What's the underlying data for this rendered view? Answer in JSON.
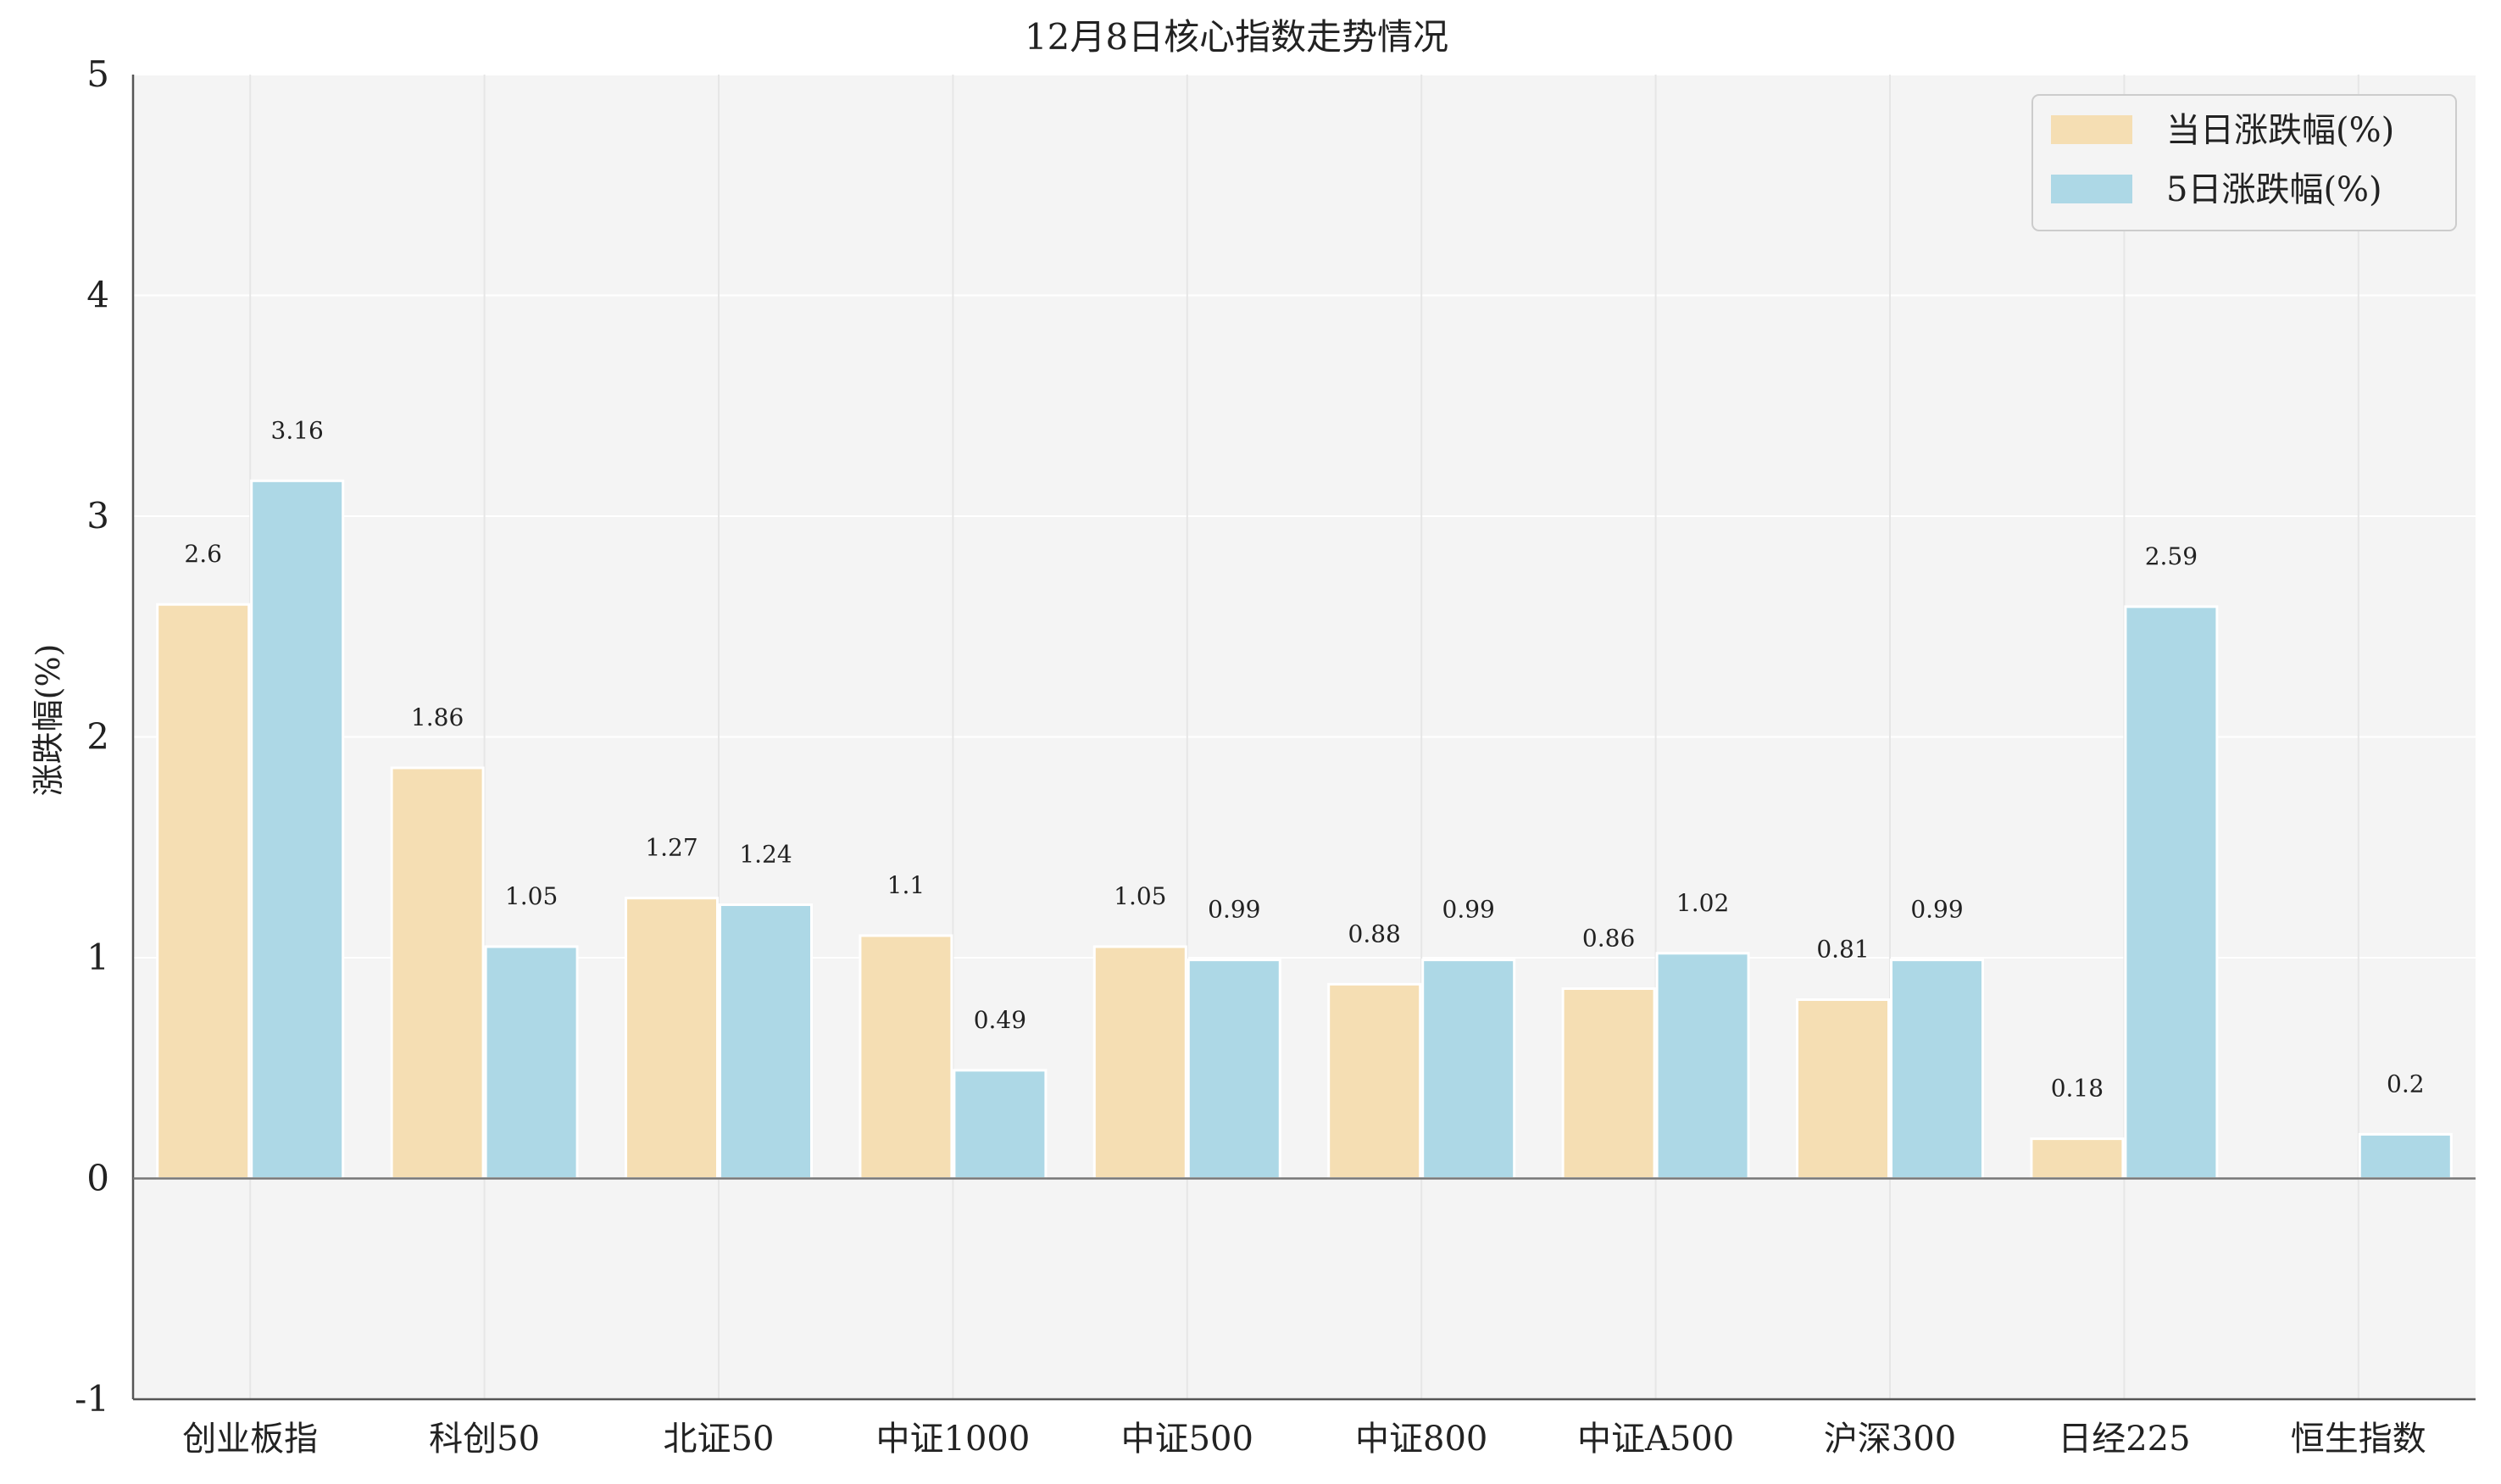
{
  "chart_data": {
    "type": "bar",
    "title": "12月8日核心指数走势情况",
    "xlabel": "",
    "ylabel": "涨跌幅(%)",
    "ylim": [
      -1,
      5
    ],
    "yticks": [
      -1,
      0,
      1,
      2,
      3,
      4,
      5
    ],
    "grid": true,
    "legend_position": "top-right",
    "categories": [
      "创业板指",
      "科创50",
      "北证50",
      "中证1000",
      "中证500",
      "中证800",
      "中证A500",
      "沪深300",
      "日经225",
      "恒生指数"
    ],
    "series": [
      {
        "name": "当日涨跌幅(%)",
        "color": "#f5deb3",
        "values": [
          2.6,
          1.86,
          1.27,
          1.1,
          1.05,
          0.88,
          0.86,
          0.81,
          0.18,
          null
        ]
      },
      {
        "name": "5日涨跌幅(%)",
        "color": "#add8e6",
        "values": [
          3.16,
          1.05,
          1.24,
          0.49,
          0.99,
          0.99,
          1.02,
          0.99,
          2.59,
          0.2
        ]
      }
    ],
    "background_color": "#f4f4f4"
  }
}
